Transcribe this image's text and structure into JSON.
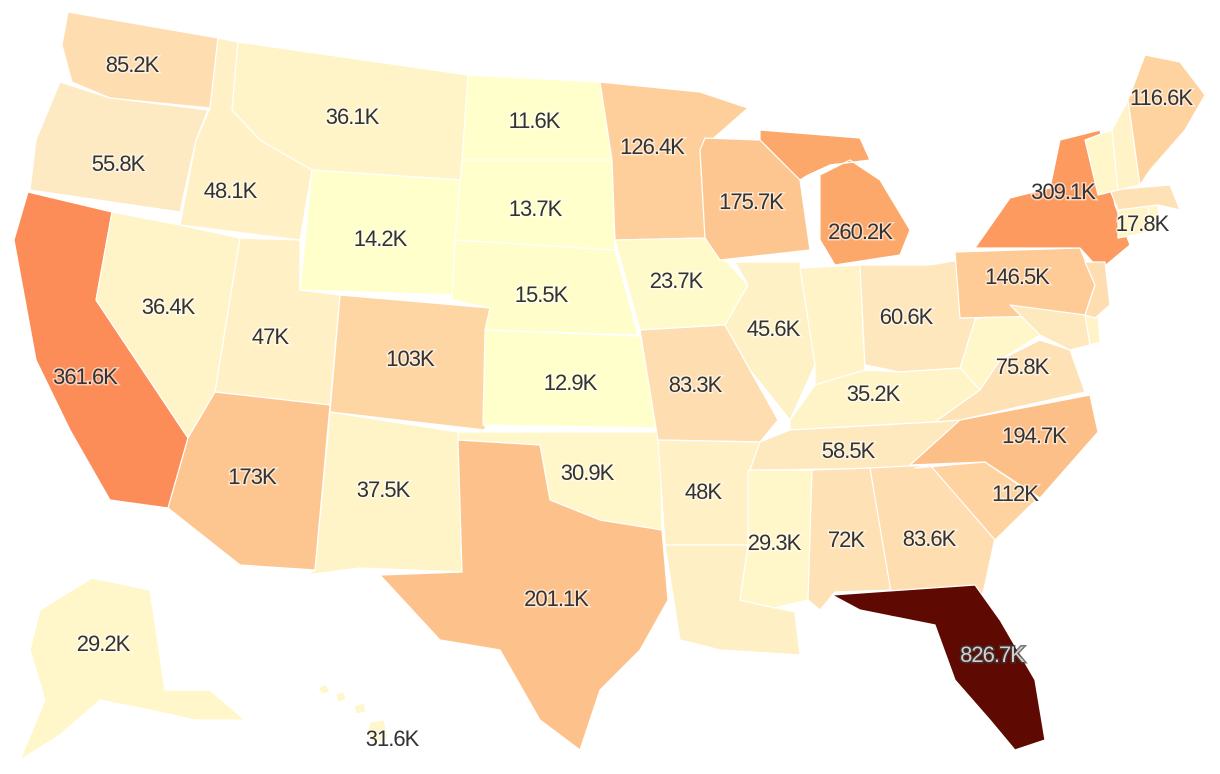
{
  "legend_colors": {
    "lowest": "#ffffcc",
    "low": "#fff2c7",
    "mid": "#fed9a6",
    "high": "#fdae6b",
    "higher": "#fc8d59",
    "highest": "#5e0a03"
  },
  "states": [
    {
      "id": "WA",
      "label": "85.2K",
      "value": 85200,
      "color": "#feddb0"
    },
    {
      "id": "OR",
      "label": "55.8K",
      "value": 55800,
      "color": "#fde9c2"
    },
    {
      "id": "CA",
      "label": "361.6K",
      "value": 361600,
      "color": "#fc8d59"
    },
    {
      "id": "ID",
      "label": "48.1K",
      "value": 48100,
      "color": "#fff0c6"
    },
    {
      "id": "NV",
      "label": "36.4K",
      "value": 36400,
      "color": "#fff4c8"
    },
    {
      "id": "MT",
      "label": "36.1K",
      "value": 36100,
      "color": "#fff4c8"
    },
    {
      "id": "WY",
      "label": "14.2K",
      "value": 14200,
      "color": "#ffffcc"
    },
    {
      "id": "UT",
      "label": "47K",
      "value": 47000,
      "color": "#fff0c6"
    },
    {
      "id": "AZ",
      "label": "173K",
      "value": 173000,
      "color": "#fdc691"
    },
    {
      "id": "CO",
      "label": "103K",
      "value": 103000,
      "color": "#fed6a4"
    },
    {
      "id": "NM",
      "label": "37.5K",
      "value": 37500,
      "color": "#fff4c8"
    },
    {
      "id": "ND",
      "label": "11.6K",
      "value": 11600,
      "color": "#ffffcc"
    },
    {
      "id": "SD",
      "label": "13.7K",
      "value": 13700,
      "color": "#ffffcc"
    },
    {
      "id": "NE",
      "label": "15.5K",
      "value": 15500,
      "color": "#fffecb"
    },
    {
      "id": "KS",
      "label": "12.9K",
      "value": 12900,
      "color": "#ffffcc"
    },
    {
      "id": "OK",
      "label": "30.9K",
      "value": 30900,
      "color": "#fff6c9"
    },
    {
      "id": "TX",
      "label": "201.1K",
      "value": 201100,
      "color": "#fdc28b"
    },
    {
      "id": "MN",
      "label": "126.4K",
      "value": 126400,
      "color": "#fecf9b"
    },
    {
      "id": "IA",
      "label": "23.7K",
      "value": 23700,
      "color": "#fffac9"
    },
    {
      "id": "MO",
      "label": "83.3K",
      "value": 83300,
      "color": "#feddb0"
    },
    {
      "id": "AR",
      "label": "48K",
      "value": 48000,
      "color": "#fff0c6"
    },
    {
      "id": "LA",
      "label": "",
      "value": null,
      "color": "#ffefc4"
    },
    {
      "id": "WI",
      "label": "175.7K",
      "value": 175700,
      "color": "#fdc691"
    },
    {
      "id": "IL",
      "label": "45.6K",
      "value": 45600,
      "color": "#fff1c6"
    },
    {
      "id": "MI",
      "label": "260.2K",
      "value": 260200,
      "color": "#fca86a"
    },
    {
      "id": "IN",
      "label": "",
      "value": null,
      "color": "#fff3c7"
    },
    {
      "id": "OH",
      "label": "60.6K",
      "value": 60600,
      "color": "#fee7bc"
    },
    {
      "id": "KY",
      "label": "35.2K",
      "value": 35200,
      "color": "#fff4c8"
    },
    {
      "id": "TN",
      "label": "58.5K",
      "value": 58500,
      "color": "#fee8be"
    },
    {
      "id": "MS",
      "label": "29.3K",
      "value": 29300,
      "color": "#fff7c9"
    },
    {
      "id": "AL",
      "label": "72K",
      "value": 72000,
      "color": "#fee2b6"
    },
    {
      "id": "GA",
      "label": "83.6K",
      "value": 83600,
      "color": "#feddb0"
    },
    {
      "id": "FL",
      "label": "826.7K",
      "value": 826700,
      "color": "#5e0a03"
    },
    {
      "id": "SC",
      "label": "112K",
      "value": 112000,
      "color": "#fed39f"
    },
    {
      "id": "NC",
      "label": "194.7K",
      "value": 194700,
      "color": "#fdbf88"
    },
    {
      "id": "VA",
      "label": "75.8K",
      "value": 75800,
      "color": "#fee1b4"
    },
    {
      "id": "WV",
      "label": "",
      "value": null,
      "color": "#fff6c9"
    },
    {
      "id": "PA",
      "label": "146.5K",
      "value": 146500,
      "color": "#fecb96"
    },
    {
      "id": "NY",
      "label": "309.1K",
      "value": 309100,
      "color": "#fc9a5f"
    },
    {
      "id": "MD",
      "label": "",
      "value": null,
      "color": "#fee8be"
    },
    {
      "id": "DE",
      "label": "",
      "value": null,
      "color": "#fff3c7"
    },
    {
      "id": "NJ",
      "label": "",
      "value": null,
      "color": "#feddb0"
    },
    {
      "id": "CT",
      "label": "",
      "value": null,
      "color": "#fff4c8"
    },
    {
      "id": "RI",
      "label": "",
      "value": null,
      "color": "#fff6c9"
    },
    {
      "id": "MA",
      "label": "17.8K",
      "value": 17800,
      "color": "#fee2b6"
    },
    {
      "id": "VT",
      "label": "",
      "value": null,
      "color": "#fff7c9"
    },
    {
      "id": "NH",
      "label": "",
      "value": null,
      "color": "#fff3c7"
    },
    {
      "id": "ME",
      "label": "116.6K",
      "value": 116600,
      "color": "#fed39f"
    },
    {
      "id": "AK",
      "label": "29.2K",
      "value": 29200,
      "color": "#fff7c9"
    },
    {
      "id": "HI",
      "label": "31.6K",
      "value": 31600,
      "color": "#fff6c9"
    }
  ]
}
